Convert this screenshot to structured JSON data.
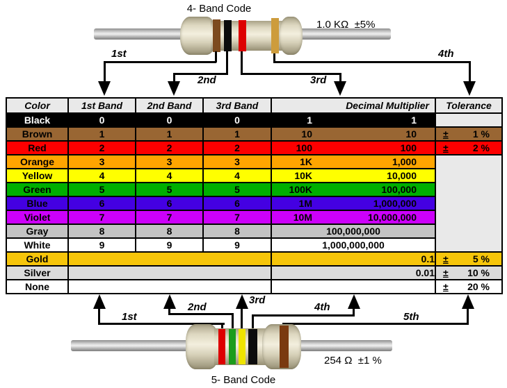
{
  "top_resistor": {
    "title": "4- Band Code",
    "value_label": "1.0 KΩ  ±5%",
    "arrow_labels": [
      "1st",
      "2nd",
      "3rd",
      "4th"
    ],
    "bands": [
      {
        "name": "brown-band",
        "color": "#7c4a1e"
      },
      {
        "name": "black-band",
        "color": "#0c0c0c"
      },
      {
        "name": "red-band",
        "color": "#dd0000"
      },
      {
        "name": "gold-band",
        "color": "#cd9c3c"
      }
    ]
  },
  "bottom_resistor": {
    "title": "5- Band Code",
    "value_label": "254 Ω  ±1 %",
    "arrow_labels": [
      "1st",
      "2nd",
      "3rd",
      "4th",
      "5th"
    ],
    "bands": [
      {
        "name": "red-band",
        "color": "#dd0000"
      },
      {
        "name": "green-band",
        "color": "#1c9c1c"
      },
      {
        "name": "yellow-band",
        "color": "#efe400"
      },
      {
        "name": "black-band",
        "color": "#0c0c0c"
      },
      {
        "name": "brown-band",
        "color": "#7a3a10"
      }
    ]
  },
  "table": {
    "headers": [
      "Color",
      "1st Band",
      "2nd Band",
      "3rd Band",
      "Decimal Multiplier",
      "Tolerance"
    ],
    "header_bg": "#e9e9e9",
    "empty_tolerance_bg": "#e9e9e9",
    "rows": [
      {
        "color": "Black",
        "bg": "#000000",
        "fg": "#ffffff",
        "b1": "0",
        "b2": "0",
        "b3": "0",
        "mult_prefix": "1",
        "mult_value": "1",
        "tol_sign": "",
        "tol_value": ""
      },
      {
        "color": "Brown",
        "bg": "#996633",
        "fg": "#000000",
        "b1": "1",
        "b2": "1",
        "b3": "1",
        "mult_prefix": "10",
        "mult_value": "10",
        "tol_sign": "±",
        "tol_value": "1 %"
      },
      {
        "color": "Red",
        "bg": "#fd0000",
        "fg": "#000000",
        "b1": "2",
        "b2": "2",
        "b3": "2",
        "mult_prefix": "100",
        "mult_value": "100",
        "tol_sign": "±",
        "tol_value": "2 %"
      },
      {
        "color": "Orange",
        "bg": "#ffa500",
        "fg": "#000000",
        "b1": "3",
        "b2": "3",
        "b3": "3",
        "mult_prefix": "1K",
        "mult_value": "1,000",
        "tol_sign": "",
        "tol_value": ""
      },
      {
        "color": "Yellow",
        "bg": "#ffff00",
        "fg": "#000000",
        "b1": "4",
        "b2": "4",
        "b3": "4",
        "mult_prefix": "10K",
        "mult_value": "10,000",
        "tol_sign": "",
        "tol_value": ""
      },
      {
        "color": "Green",
        "bg": "#00af00",
        "fg": "#000000",
        "b1": "5",
        "b2": "5",
        "b3": "5",
        "mult_prefix": "100K",
        "mult_value": "100,000",
        "tol_sign": "",
        "tol_value": ""
      },
      {
        "color": "Blue",
        "bg": "#4400e2",
        "fg": "#000000",
        "b1": "6",
        "b2": "6",
        "b3": "6",
        "mult_prefix": "1M",
        "mult_value": "1,000,000",
        "tol_sign": "",
        "tol_value": ""
      },
      {
        "color": "Violet",
        "bg": "#cc00fa",
        "fg": "#000000",
        "b1": "7",
        "b2": "7",
        "b3": "7",
        "mult_prefix": "10M",
        "mult_value": "10,000,000",
        "tol_sign": "",
        "tol_value": ""
      },
      {
        "color": "Gray",
        "bg": "#c3c3c3",
        "fg": "#000000",
        "b1": "8",
        "b2": "8",
        "b3": "8",
        "mult_prefix": "",
        "mult_value": "100,000,000",
        "tol_sign": "",
        "tol_value": "",
        "mult_center": true
      },
      {
        "color": "White",
        "bg": "#ffffff",
        "fg": "#000000",
        "b1": "9",
        "b2": "9",
        "b3": "9",
        "mult_prefix": "",
        "mult_value": "1,000,000,000",
        "tol_sign": "",
        "tol_value": "",
        "mult_center": true
      },
      {
        "color": "Gold",
        "bg": "#f6c50a",
        "fg": "#000000",
        "b1": "",
        "b2": "",
        "b3": "",
        "mult_prefix": "",
        "mult_value": "0.1",
        "tol_sign": "±",
        "tol_value": "5 %",
        "merged_bands": true
      },
      {
        "color": "Silver",
        "bg": "#dbdbdb",
        "fg": "#000000",
        "b1": "",
        "b2": "",
        "b3": "",
        "mult_prefix": "",
        "mult_value": "0.01",
        "tol_sign": "±",
        "tol_value": "10 %",
        "merged_bands": true
      },
      {
        "color": "None",
        "bg": "#ffffff",
        "fg": "#000000",
        "b1": "",
        "b2": "",
        "b3": "",
        "mult_prefix": "",
        "mult_value": "",
        "tol_sign": "±",
        "tol_value": "20 %",
        "merged_bands": true
      }
    ]
  }
}
